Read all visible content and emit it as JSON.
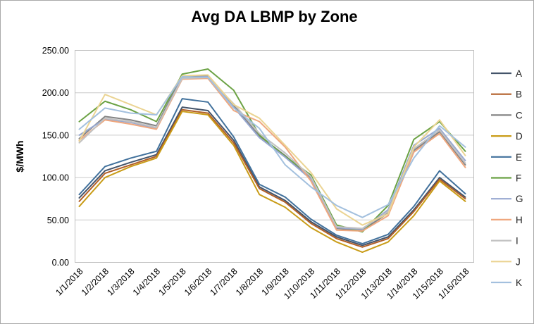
{
  "window": {
    "background": "#ffffff",
    "border_color": "#a9a9a9",
    "grid_color": "#c9c9c9",
    "axis_box_color": "#bfbfbf"
  },
  "chart_data": {
    "type": "line",
    "title": "Avg DA LBMP by Zone",
    "xlabel": "",
    "ylabel": "$/MWh",
    "ylim": [
      0,
      250
    ],
    "ytick_labels": [
      "0.00",
      "50.00",
      "100.00",
      "150.00",
      "200.00",
      "250.00"
    ],
    "ytick_values": [
      0,
      50,
      100,
      150,
      200,
      250
    ],
    "grid": true,
    "legend_position": "right",
    "categories": [
      "1/1/2018",
      "1/2/2018",
      "1/3/2018",
      "1/4/2018",
      "1/5/2018",
      "1/6/2018",
      "1/7/2018",
      "1/8/2018",
      "1/9/2018",
      "1/10/2018",
      "1/11/2018",
      "1/12/2018",
      "1/13/2018",
      "1/14/2018",
      "1/15/2018",
      "1/16/2018"
    ],
    "series": [
      {
        "name": "A",
        "color": "#44546a",
        "values": [
          76,
          108,
          118,
          127,
          183,
          179,
          144,
          89,
          73,
          48,
          30,
          20,
          30,
          62,
          100,
          77
        ]
      },
      {
        "name": "B",
        "color": "#b25f28",
        "values": [
          72,
          105,
          115,
          125,
          180,
          176,
          141,
          87,
          71,
          46,
          28,
          18,
          28,
          60,
          98,
          75
        ]
      },
      {
        "name": "C",
        "color": "#848484",
        "values": [
          146,
          172,
          168,
          161,
          220,
          220,
          185,
          149,
          126,
          99,
          40,
          38,
          58,
          132,
          154,
          115
        ]
      },
      {
        "name": "D",
        "color": "#c99c17",
        "values": [
          66,
          100,
          113,
          123,
          178,
          174,
          138,
          80,
          65,
          41,
          24,
          12,
          24,
          55,
          96,
          72
        ]
      },
      {
        "name": "E",
        "color": "#41719c",
        "values": [
          80,
          113,
          123,
          131,
          193,
          189,
          148,
          92,
          77,
          51,
          32,
          22,
          33,
          66,
          108,
          81
        ]
      },
      {
        "name": "F",
        "color": "#6ba244",
        "values": [
          166,
          190,
          180,
          166,
          222,
          228,
          203,
          150,
          125,
          103,
          44,
          36,
          67,
          145,
          166,
          131
        ]
      },
      {
        "name": "G",
        "color": "#97a8d1",
        "values": [
          150,
          169,
          165,
          158,
          218,
          219,
          183,
          147,
          124,
          98,
          41,
          39,
          62,
          138,
          158,
          120
        ]
      },
      {
        "name": "H",
        "color": "#efa77e",
        "values": [
          144,
          168,
          163,
          157,
          216,
          217,
          179,
          166,
          136,
          96,
          38,
          37,
          55,
          130,
          152,
          112
        ]
      },
      {
        "name": "I",
        "color": "#c2c2c2",
        "values": [
          141,
          170,
          166,
          159,
          217,
          218,
          187,
          152,
          129,
          101,
          42,
          40,
          60,
          134,
          156,
          117
        ]
      },
      {
        "name": "J",
        "color": "#ebd493",
        "values": [
          143,
          198,
          186,
          174,
          220,
          221,
          186,
          170,
          138,
          106,
          63,
          44,
          57,
          136,
          168,
          126
        ]
      },
      {
        "name": "K",
        "color": "#a3c0de",
        "values": [
          157,
          182,
          176,
          174,
          219,
          218,
          182,
          158,
          115,
          89,
          67,
          53,
          68,
          123,
          161,
          136
        ]
      }
    ]
  }
}
